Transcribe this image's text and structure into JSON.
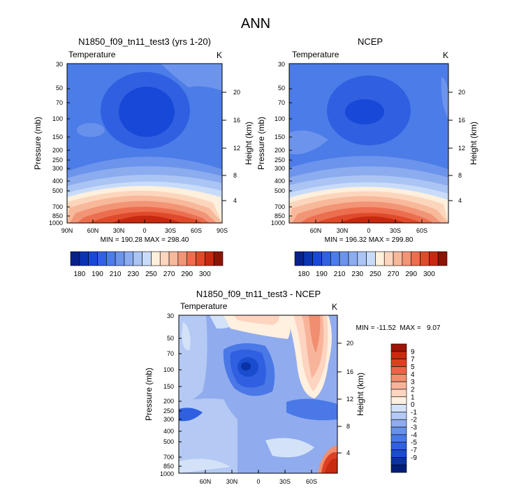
{
  "figure_title": "ANN",
  "chart_data": [
    {
      "type": "heatmap",
      "id": "model",
      "title": "N1850_f09_tn11_test3 (yrs 1-20)",
      "left_label": "Temperature",
      "right_label": "K",
      "ylabel": "Pressure (mb)",
      "y2label": "Height (km)",
      "pressure_ticks": [
        "30",
        "50",
        "70",
        "100",
        "150",
        "200",
        "250",
        "300",
        "400",
        "500",
        "700",
        "850",
        "1000"
      ],
      "height_ticks": [
        "4",
        "8",
        "12",
        "16",
        "20"
      ],
      "lat_ticks": [
        "90N",
        "60N",
        "30N",
        "0",
        "30S",
        "60S",
        "90S"
      ],
      "x_range": [
        90,
        -90
      ],
      "y_range_mb": [
        1000,
        30
      ],
      "stats": "MIN = 190.28   MAX = 298.40",
      "colorbar_ticks": [
        "180",
        "190",
        "210",
        "230",
        "250",
        "270",
        "290",
        "300"
      ]
    },
    {
      "type": "heatmap",
      "id": "obs",
      "title": "NCEP",
      "left_label": "Temperature",
      "right_label": "K",
      "ylabel": "Pressure (mb)",
      "y2label": "Height (km)",
      "pressure_ticks": [
        "30",
        "50",
        "70",
        "100",
        "150",
        "200",
        "250",
        "300",
        "400",
        "500",
        "700",
        "850",
        "1000"
      ],
      "height_ticks": [
        "4",
        "8",
        "12",
        "16",
        "20"
      ],
      "lat_ticks": [
        "60N",
        "30N",
        "0",
        "30S",
        "60S"
      ],
      "x_range": [
        90,
        -90
      ],
      "y_range_mb": [
        1000,
        30
      ],
      "stats": "MIN = 196.32   MAX = 299.80",
      "colorbar_ticks": [
        "180",
        "190",
        "210",
        "230",
        "250",
        "270",
        "290",
        "300"
      ]
    },
    {
      "type": "heatmap",
      "id": "diff",
      "title": "N1850_f09_tn11_test3 - NCEP",
      "left_label": "Temperature",
      "right_label": "K",
      "ylabel": "Pressure (mb)",
      "y2label": "Height (km)",
      "pressure_ticks": [
        "30",
        "50",
        "70",
        "100",
        "150",
        "200",
        "250",
        "300",
        "400",
        "500",
        "700",
        "850",
        "1000"
      ],
      "height_ticks": [
        "4",
        "8",
        "12",
        "16",
        "20"
      ],
      "lat_ticks": [
        "60N",
        "30N",
        "0",
        "30S",
        "60S"
      ],
      "x_range": [
        90,
        -90
      ],
      "y_range_mb": [
        1000,
        30
      ],
      "stats": "MIN = -11.52  MAX =   9.07",
      "colorbar_ticks": [
        "9",
        "7",
        "5",
        "4",
        "3",
        "2",
        "1",
        "0",
        "-1",
        "-2",
        "-3",
        "-4",
        "-5",
        "-7",
        "-9"
      ]
    }
  ],
  "colors": {
    "abs_scale": [
      "#08208a",
      "#0a34b4",
      "#1848d8",
      "#3060e4",
      "#4c7ce8",
      "#6c94ec",
      "#8cacf0",
      "#aac4f4",
      "#c8dcfa",
      "#fdf0dc",
      "#fcd6bc",
      "#f8b89a",
      "#f29476",
      "#ec6e4e",
      "#e04a2a",
      "#c82810",
      "#8c1406"
    ],
    "diff_scale": [
      "#001e78",
      "#0a32a6",
      "#1a4ccf",
      "#305fe1",
      "#4a78e6",
      "#6891ea",
      "#90acee",
      "#b4c9f3",
      "#d4e2f8",
      "#fff0df",
      "#fdd4c0",
      "#f8b49a",
      "#f08e6f",
      "#e86648",
      "#dc4024",
      "#c82a10",
      "#9c1406"
    ]
  }
}
